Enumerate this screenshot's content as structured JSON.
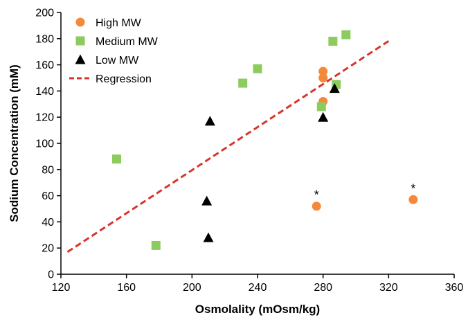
{
  "chart_data": {
    "type": "scatter",
    "title": "",
    "xlabel": "Osmolality (mOsm/kg)",
    "ylabel": "Sodium Concentration (mM)",
    "xlim": [
      120,
      360
    ],
    "ylim": [
      0,
      200
    ],
    "xticks": [
      120,
      160,
      200,
      240,
      280,
      320,
      360
    ],
    "yticks": [
      0,
      20,
      40,
      60,
      80,
      100,
      120,
      140,
      160,
      180,
      200
    ],
    "grid": false,
    "legend_position": "top-left",
    "series": [
      {
        "name": "High MW",
        "marker": "circle",
        "color": "#F5893A",
        "points": [
          [
            280,
            155
          ],
          [
            280,
            150
          ],
          [
            280,
            132
          ],
          [
            276,
            52
          ],
          [
            335,
            57
          ]
        ]
      },
      {
        "name": "Medium MW",
        "marker": "square",
        "color": "#8CCB5E",
        "points": [
          [
            154,
            88
          ],
          [
            178,
            22
          ],
          [
            231,
            146
          ],
          [
            240,
            157
          ],
          [
            279,
            128
          ],
          [
            286,
            178
          ],
          [
            288,
            145
          ],
          [
            294,
            183
          ]
        ]
      },
      {
        "name": "Low MW",
        "marker": "triangle",
        "color": "#000000",
        "points": [
          [
            211,
            117
          ],
          [
            209,
            56
          ],
          [
            210,
            28
          ],
          [
            280,
            120
          ],
          [
            287,
            142
          ]
        ]
      },
      {
        "name": "Regression",
        "marker": "dashed-line",
        "color": "#D9342B",
        "points": [
          [
            124,
            17
          ],
          [
            321,
            179
          ]
        ]
      }
    ],
    "annotations": [
      {
        "text": "*",
        "x": 276,
        "y": 52
      },
      {
        "text": "*",
        "x": 335,
        "y": 57
      }
    ]
  }
}
